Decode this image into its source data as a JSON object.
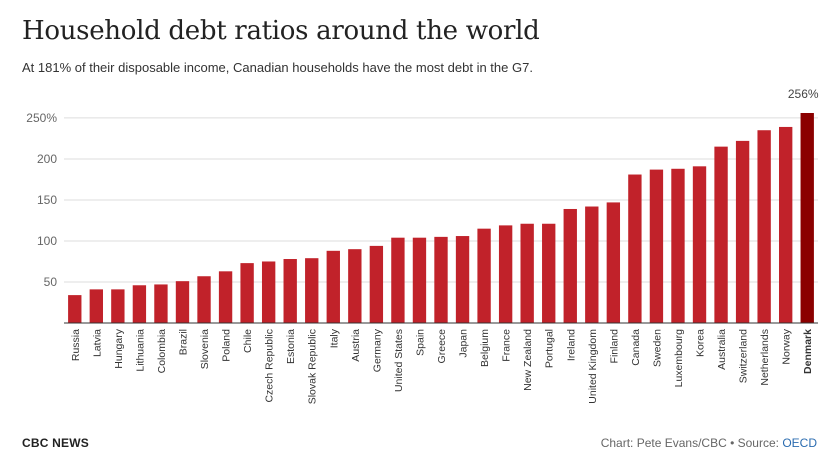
{
  "header": {
    "title": "Household debt ratios around the world",
    "subtitle": "At 181% of their disposable income, Canadian households have the most debt in the G7."
  },
  "footer": {
    "brand": "CBC NEWS",
    "credit_prefix": "Chart: Pete Evans/CBC • Source: ",
    "source_link": "OECD"
  },
  "colors": {
    "bar": "#c1222a",
    "highlight": "#8b0000",
    "grid": "#dddddd",
    "axis_text": "#666666"
  },
  "chart_data": {
    "type": "bar",
    "title": "Household debt ratios around the world",
    "categories": [
      "Russia",
      "Latvia",
      "Hungary",
      "Lithuania",
      "Colombia",
      "Brazil",
      "Slovenia",
      "Poland",
      "Chile",
      "Czech Republic",
      "Estonia",
      "Slovak Republic",
      "Italy",
      "Austria",
      "Germany",
      "United States",
      "Spain",
      "Greece",
      "Japan",
      "Belgium",
      "France",
      "New Zealand",
      "Portugal",
      "Ireland",
      "United Kingdom",
      "Finland",
      "Canada",
      "Sweden",
      "Luxembourg",
      "Korea",
      "Australia",
      "Switzerland",
      "Netherlands",
      "Norway",
      "Denmark"
    ],
    "values": [
      34,
      41,
      41,
      46,
      47,
      51,
      57,
      63,
      73,
      75,
      78,
      79,
      88,
      90,
      94,
      104,
      104,
      105,
      106,
      115,
      119,
      121,
      121,
      139,
      142,
      147,
      181,
      187,
      188,
      191,
      215,
      222,
      235,
      239,
      256
    ],
    "ylim": [
      0,
      256
    ],
    "yticks": [
      50,
      100,
      150,
      200,
      250
    ],
    "ytick_labels": [
      "50",
      "100",
      "150",
      "200",
      "250%"
    ],
    "highlight": {
      "category": "Denmark",
      "label": "256%"
    },
    "grid": true
  }
}
